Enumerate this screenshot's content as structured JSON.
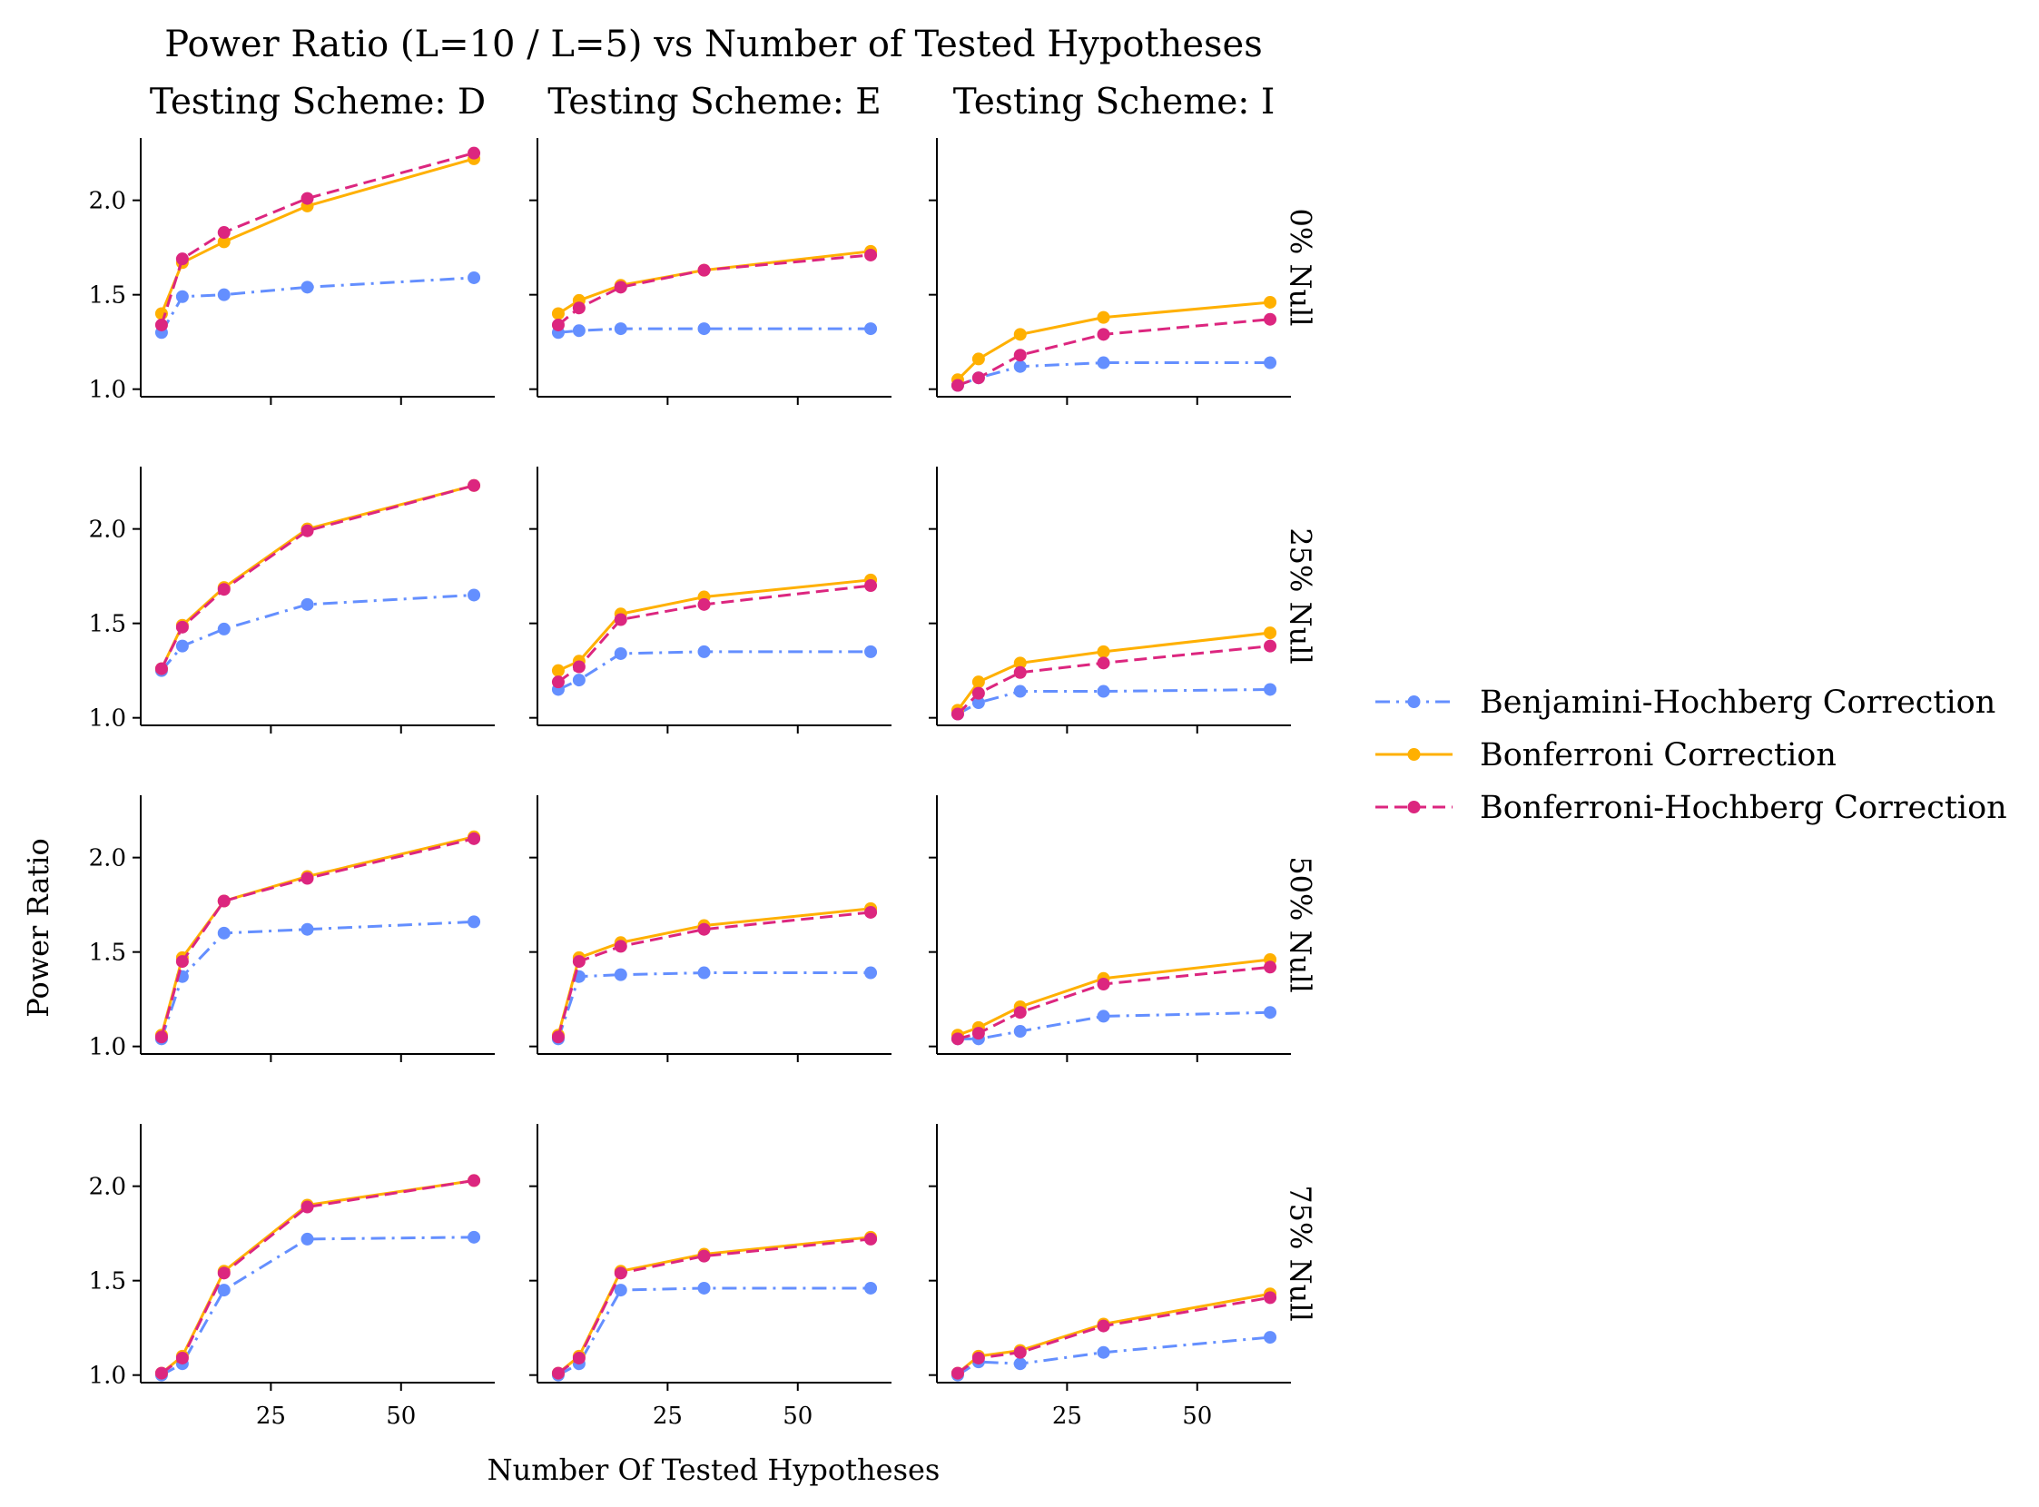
{
  "title": "Power Ratio (L=10 / L=5) vs Number of Tested Hypotheses",
  "col_titles": [
    "Testing Scheme: D",
    "Testing Scheme: E",
    "Testing Scheme: I"
  ],
  "row_titles": [
    "0% Null",
    "25% Null",
    "50% Null",
    "75% Null"
  ],
  "xlabel": "Number Of Tested Hypotheses",
  "ylabel": "Power Ratio",
  "x_ticks": [
    25,
    50
  ],
  "y_ticks": [
    "1.0",
    "1.5",
    "2.0"
  ],
  "legend": [
    {
      "label": "Benjamini-Hochberg Correction",
      "color": "#648fff",
      "dash": "dashdot"
    },
    {
      "label": "Bonferroni Correction",
      "color": "#ffb000",
      "dash": "solid"
    },
    {
      "label": "Bonferroni-Hochberg Correction",
      "color": "#dc267f",
      "dash": "dashed"
    }
  ],
  "chart_data": {
    "type": "line",
    "layout": "facet grid: rows = null proportion, columns = testing scheme",
    "x": [
      4,
      8,
      16,
      32,
      64
    ],
    "xlim": [
      0,
      68
    ],
    "ylim": [
      0.96,
      2.33
    ],
    "legend_position": "right",
    "grid": false,
    "panels": [
      {
        "row": "0% Null",
        "col": "Testing Scheme: D",
        "series": [
          {
            "name": "Benjamini-Hochberg Correction",
            "values": [
              1.3,
              1.49,
              1.5,
              1.54,
              1.59
            ]
          },
          {
            "name": "Bonferroni Correction",
            "values": [
              1.4,
              1.67,
              1.78,
              1.97,
              2.22
            ]
          },
          {
            "name": "Bonferroni-Hochberg Correction",
            "values": [
              1.34,
              1.69,
              1.83,
              2.01,
              2.25
            ]
          }
        ]
      },
      {
        "row": "0% Null",
        "col": "Testing Scheme: E",
        "series": [
          {
            "name": "Benjamini-Hochberg Correction",
            "values": [
              1.3,
              1.31,
              1.32,
              1.32,
              1.32
            ]
          },
          {
            "name": "Bonferroni Correction",
            "values": [
              1.4,
              1.47,
              1.55,
              1.63,
              1.73
            ]
          },
          {
            "name": "Bonferroni-Hochberg Correction",
            "values": [
              1.34,
              1.43,
              1.54,
              1.63,
              1.71
            ]
          }
        ]
      },
      {
        "row": "0% Null",
        "col": "Testing Scheme: I",
        "series": [
          {
            "name": "Benjamini-Hochberg Correction",
            "values": [
              1.02,
              1.06,
              1.12,
              1.14,
              1.14
            ]
          },
          {
            "name": "Bonferroni Correction",
            "values": [
              1.05,
              1.16,
              1.29,
              1.38,
              1.46
            ]
          },
          {
            "name": "Bonferroni-Hochberg Correction",
            "values": [
              1.02,
              1.06,
              1.18,
              1.29,
              1.37
            ]
          }
        ]
      },
      {
        "row": "25% Null",
        "col": "Testing Scheme: D",
        "series": [
          {
            "name": "Benjamini-Hochberg Correction",
            "values": [
              1.25,
              1.38,
              1.47,
              1.6,
              1.65
            ]
          },
          {
            "name": "Bonferroni Correction",
            "values": [
              1.26,
              1.49,
              1.69,
              2.0,
              2.23
            ]
          },
          {
            "name": "Bonferroni-Hochberg Correction",
            "values": [
              1.26,
              1.48,
              1.68,
              1.99,
              2.23
            ]
          }
        ]
      },
      {
        "row": "25% Null",
        "col": "Testing Scheme: E",
        "series": [
          {
            "name": "Benjamini-Hochberg Correction",
            "values": [
              1.15,
              1.2,
              1.34,
              1.35,
              1.35
            ]
          },
          {
            "name": "Bonferroni Correction",
            "values": [
              1.25,
              1.3,
              1.55,
              1.64,
              1.73
            ]
          },
          {
            "name": "Bonferroni-Hochberg Correction",
            "values": [
              1.19,
              1.27,
              1.52,
              1.6,
              1.7
            ]
          }
        ]
      },
      {
        "row": "25% Null",
        "col": "Testing Scheme: I",
        "series": [
          {
            "name": "Benjamini-Hochberg Correction",
            "values": [
              1.02,
              1.08,
              1.14,
              1.14,
              1.15
            ]
          },
          {
            "name": "Bonferroni Correction",
            "values": [
              1.04,
              1.19,
              1.29,
              1.35,
              1.45
            ]
          },
          {
            "name": "Bonferroni-Hochberg Correction",
            "values": [
              1.02,
              1.13,
              1.24,
              1.29,
              1.38
            ]
          }
        ]
      },
      {
        "row": "50% Null",
        "col": "Testing Scheme: D",
        "series": [
          {
            "name": "Benjamini-Hochberg Correction",
            "values": [
              1.04,
              1.37,
              1.6,
              1.62,
              1.66
            ]
          },
          {
            "name": "Bonferroni Correction",
            "values": [
              1.06,
              1.47,
              1.77,
              1.9,
              2.11
            ]
          },
          {
            "name": "Bonferroni-Hochberg Correction",
            "values": [
              1.05,
              1.45,
              1.77,
              1.89,
              2.1
            ]
          }
        ]
      },
      {
        "row": "50% Null",
        "col": "Testing Scheme: E",
        "series": [
          {
            "name": "Benjamini-Hochberg Correction",
            "values": [
              1.04,
              1.37,
              1.38,
              1.39,
              1.39
            ]
          },
          {
            "name": "Bonferroni Correction",
            "values": [
              1.06,
              1.47,
              1.55,
              1.64,
              1.73
            ]
          },
          {
            "name": "Bonferroni-Hochberg Correction",
            "values": [
              1.05,
              1.45,
              1.53,
              1.62,
              1.71
            ]
          }
        ]
      },
      {
        "row": "50% Null",
        "col": "Testing Scheme: I",
        "series": [
          {
            "name": "Benjamini-Hochberg Correction",
            "values": [
              1.04,
              1.04,
              1.08,
              1.16,
              1.18
            ]
          },
          {
            "name": "Bonferroni Correction",
            "values": [
              1.06,
              1.1,
              1.21,
              1.36,
              1.46
            ]
          },
          {
            "name": "Bonferroni-Hochberg Correction",
            "values": [
              1.04,
              1.07,
              1.18,
              1.33,
              1.42
            ]
          }
        ]
      },
      {
        "row": "75% Null",
        "col": "Testing Scheme: D",
        "series": [
          {
            "name": "Benjamini-Hochberg Correction",
            "values": [
              1.0,
              1.06,
              1.45,
              1.72,
              1.73
            ]
          },
          {
            "name": "Bonferroni Correction",
            "values": [
              1.01,
              1.1,
              1.55,
              1.9,
              2.03
            ]
          },
          {
            "name": "Bonferroni-Hochberg Correction",
            "values": [
              1.01,
              1.09,
              1.54,
              1.89,
              2.03
            ]
          }
        ]
      },
      {
        "row": "75% Null",
        "col": "Testing Scheme: E",
        "series": [
          {
            "name": "Benjamini-Hochberg Correction",
            "values": [
              1.0,
              1.06,
              1.45,
              1.46,
              1.46
            ]
          },
          {
            "name": "Bonferroni Correction",
            "values": [
              1.01,
              1.1,
              1.55,
              1.64,
              1.73
            ]
          },
          {
            "name": "Bonferroni-Hochberg Correction",
            "values": [
              1.01,
              1.09,
              1.54,
              1.63,
              1.72
            ]
          }
        ]
      },
      {
        "row": "75% Null",
        "col": "Testing Scheme: I",
        "series": [
          {
            "name": "Benjamini-Hochberg Correction",
            "values": [
              1.0,
              1.07,
              1.06,
              1.12,
              1.2
            ]
          },
          {
            "name": "Bonferroni Correction",
            "values": [
              1.01,
              1.1,
              1.13,
              1.27,
              1.43
            ]
          },
          {
            "name": "Bonferroni-Hochberg Correction",
            "values": [
              1.01,
              1.09,
              1.12,
              1.26,
              1.41
            ]
          }
        ]
      }
    ]
  }
}
